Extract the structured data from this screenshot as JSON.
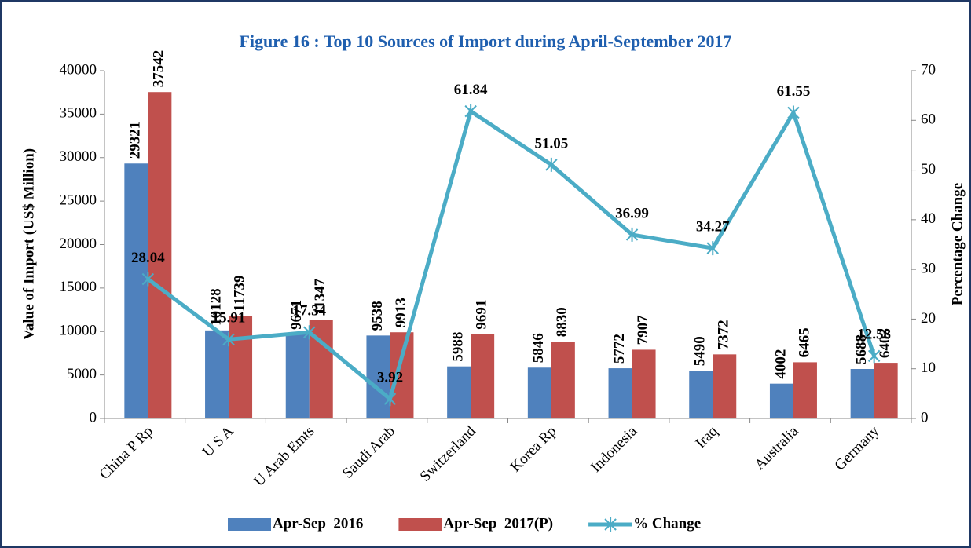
{
  "chart_data": {
    "type": "bar_line",
    "title": "Figure 16 : Top 10 Sources of Import during April-September 2017",
    "y_label": "Value of Import (US$ Million)",
    "y2_label": "Percentage Change",
    "categories": [
      "China P Rp",
      "U S A",
      "U Arab Emts",
      "Saudi Arab",
      "Switzerland",
      "Korea Rp",
      "Indonesia",
      "Iraq",
      "Australia",
      "Germany"
    ],
    "series": [
      {
        "name": "Apr-Sep  2016",
        "type": "bar",
        "color": "#4f81bd",
        "axis": "y",
        "values": [
          29321,
          10128,
          9671,
          9538,
          5988,
          5846,
          5772,
          5490,
          4002,
          5688
        ]
      },
      {
        "name": "Apr-Sep  2017(P)",
        "type": "bar",
        "color": "#c0504d",
        "axis": "y",
        "values": [
          37542,
          11739,
          11347,
          9913,
          9691,
          8830,
          7907,
          7372,
          6465,
          6403
        ]
      },
      {
        "name": "% Change",
        "type": "line",
        "color": "#4bacc6",
        "axis": "y2",
        "values": [
          28.04,
          15.91,
          17.34,
          3.92,
          61.84,
          51.05,
          36.99,
          34.27,
          61.55,
          12.58
        ]
      }
    ],
    "ylim": [
      0,
      40000
    ],
    "yticks": [
      0,
      5000,
      10000,
      15000,
      20000,
      25000,
      30000,
      35000,
      40000
    ],
    "y2lim": [
      0,
      70
    ],
    "y2ticks": [
      0,
      10,
      20,
      30,
      40,
      50,
      60,
      70
    ],
    "legend": "bottom",
    "grid": false
  }
}
